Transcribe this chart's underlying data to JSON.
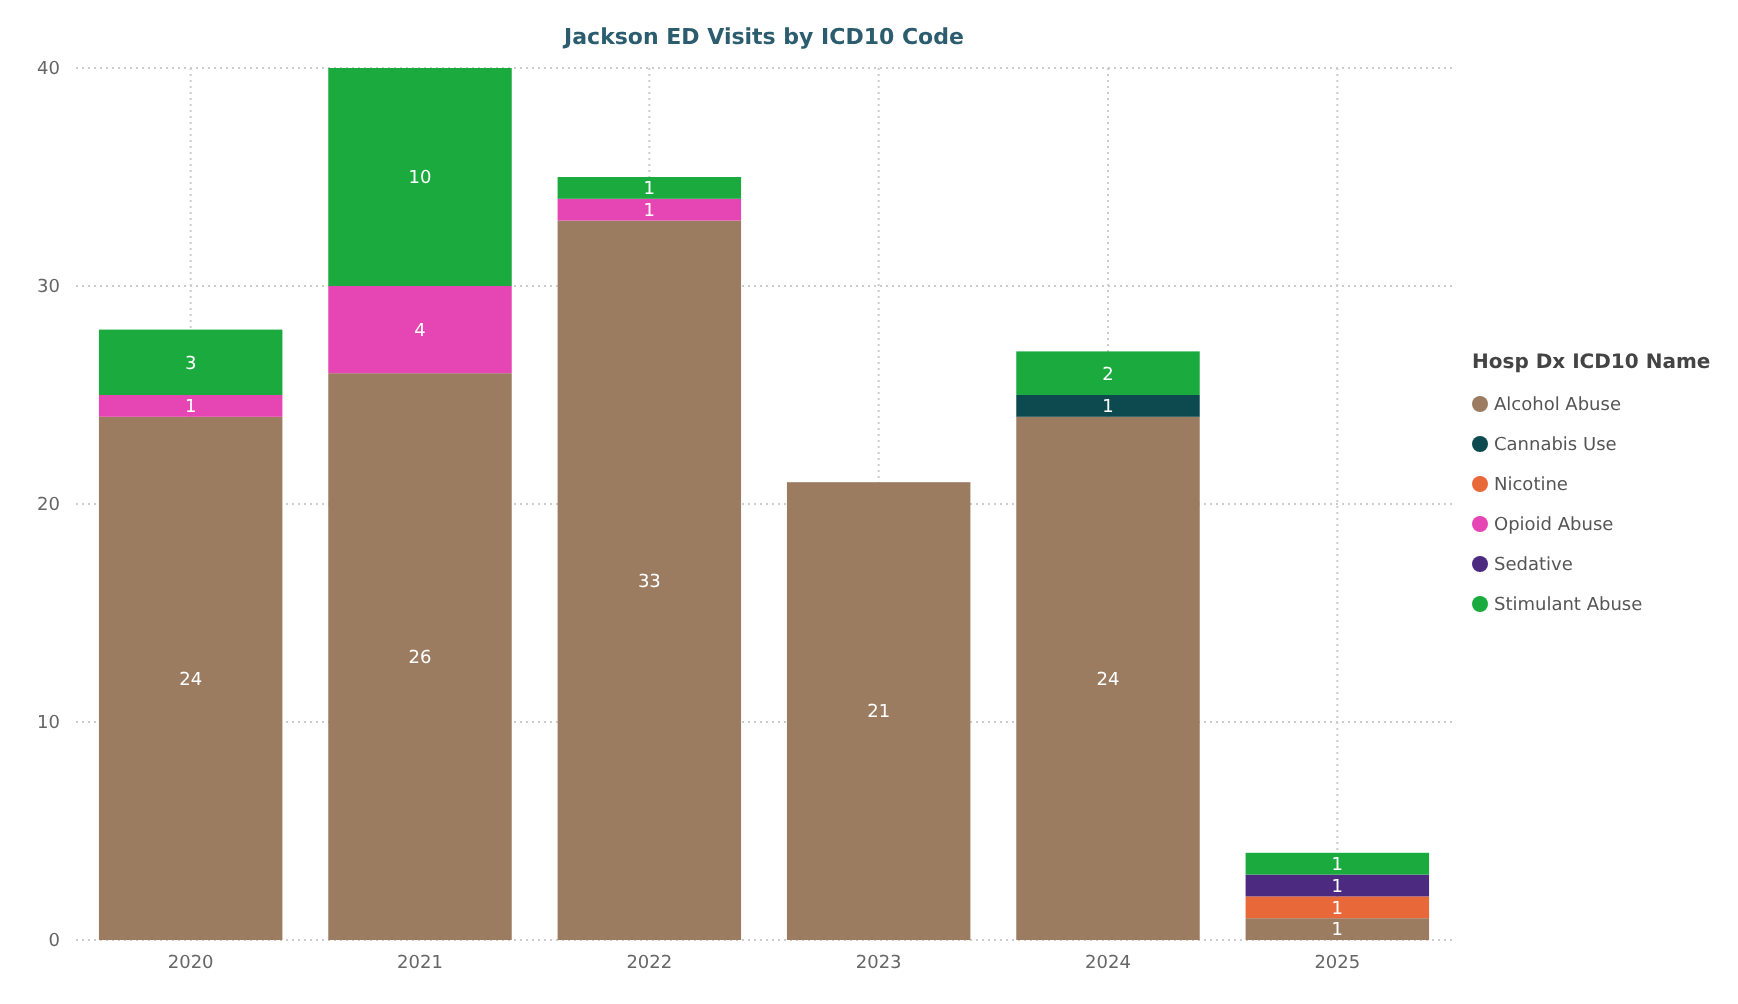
{
  "chart_data": {
    "type": "bar",
    "stacked": true,
    "title": "Jackson ED Visits by ICD10 Code",
    "legend_title": "Hosp Dx ICD10 Name",
    "categories": [
      "2020",
      "2021",
      "2022",
      "2023",
      "2024",
      "2025"
    ],
    "series": [
      {
        "name": "Alcohol Abuse",
        "color": "#9c7c61",
        "values": [
          24,
          26,
          33,
          21,
          24,
          1
        ]
      },
      {
        "name": "Cannabis Use",
        "color": "#0c4a4f",
        "values": [
          null,
          null,
          null,
          null,
          1,
          null
        ]
      },
      {
        "name": "Nicotine",
        "color": "#e8683a",
        "values": [
          null,
          null,
          null,
          null,
          null,
          1
        ]
      },
      {
        "name": "Opioid Abuse",
        "color": "#e645b4",
        "values": [
          1,
          4,
          1,
          null,
          null,
          null
        ]
      },
      {
        "name": "Sedative",
        "color": "#4b2a80",
        "values": [
          null,
          null,
          null,
          null,
          null,
          1
        ]
      },
      {
        "name": "Stimulant Abuse",
        "color": "#1aaa3e",
        "values": [
          3,
          10,
          1,
          null,
          2,
          1
        ]
      }
    ],
    "ylim": [
      0,
      40
    ],
    "yticks": [
      0,
      10,
      20,
      30,
      40
    ],
    "grid": true,
    "legend": "right",
    "data_labels": true
  }
}
